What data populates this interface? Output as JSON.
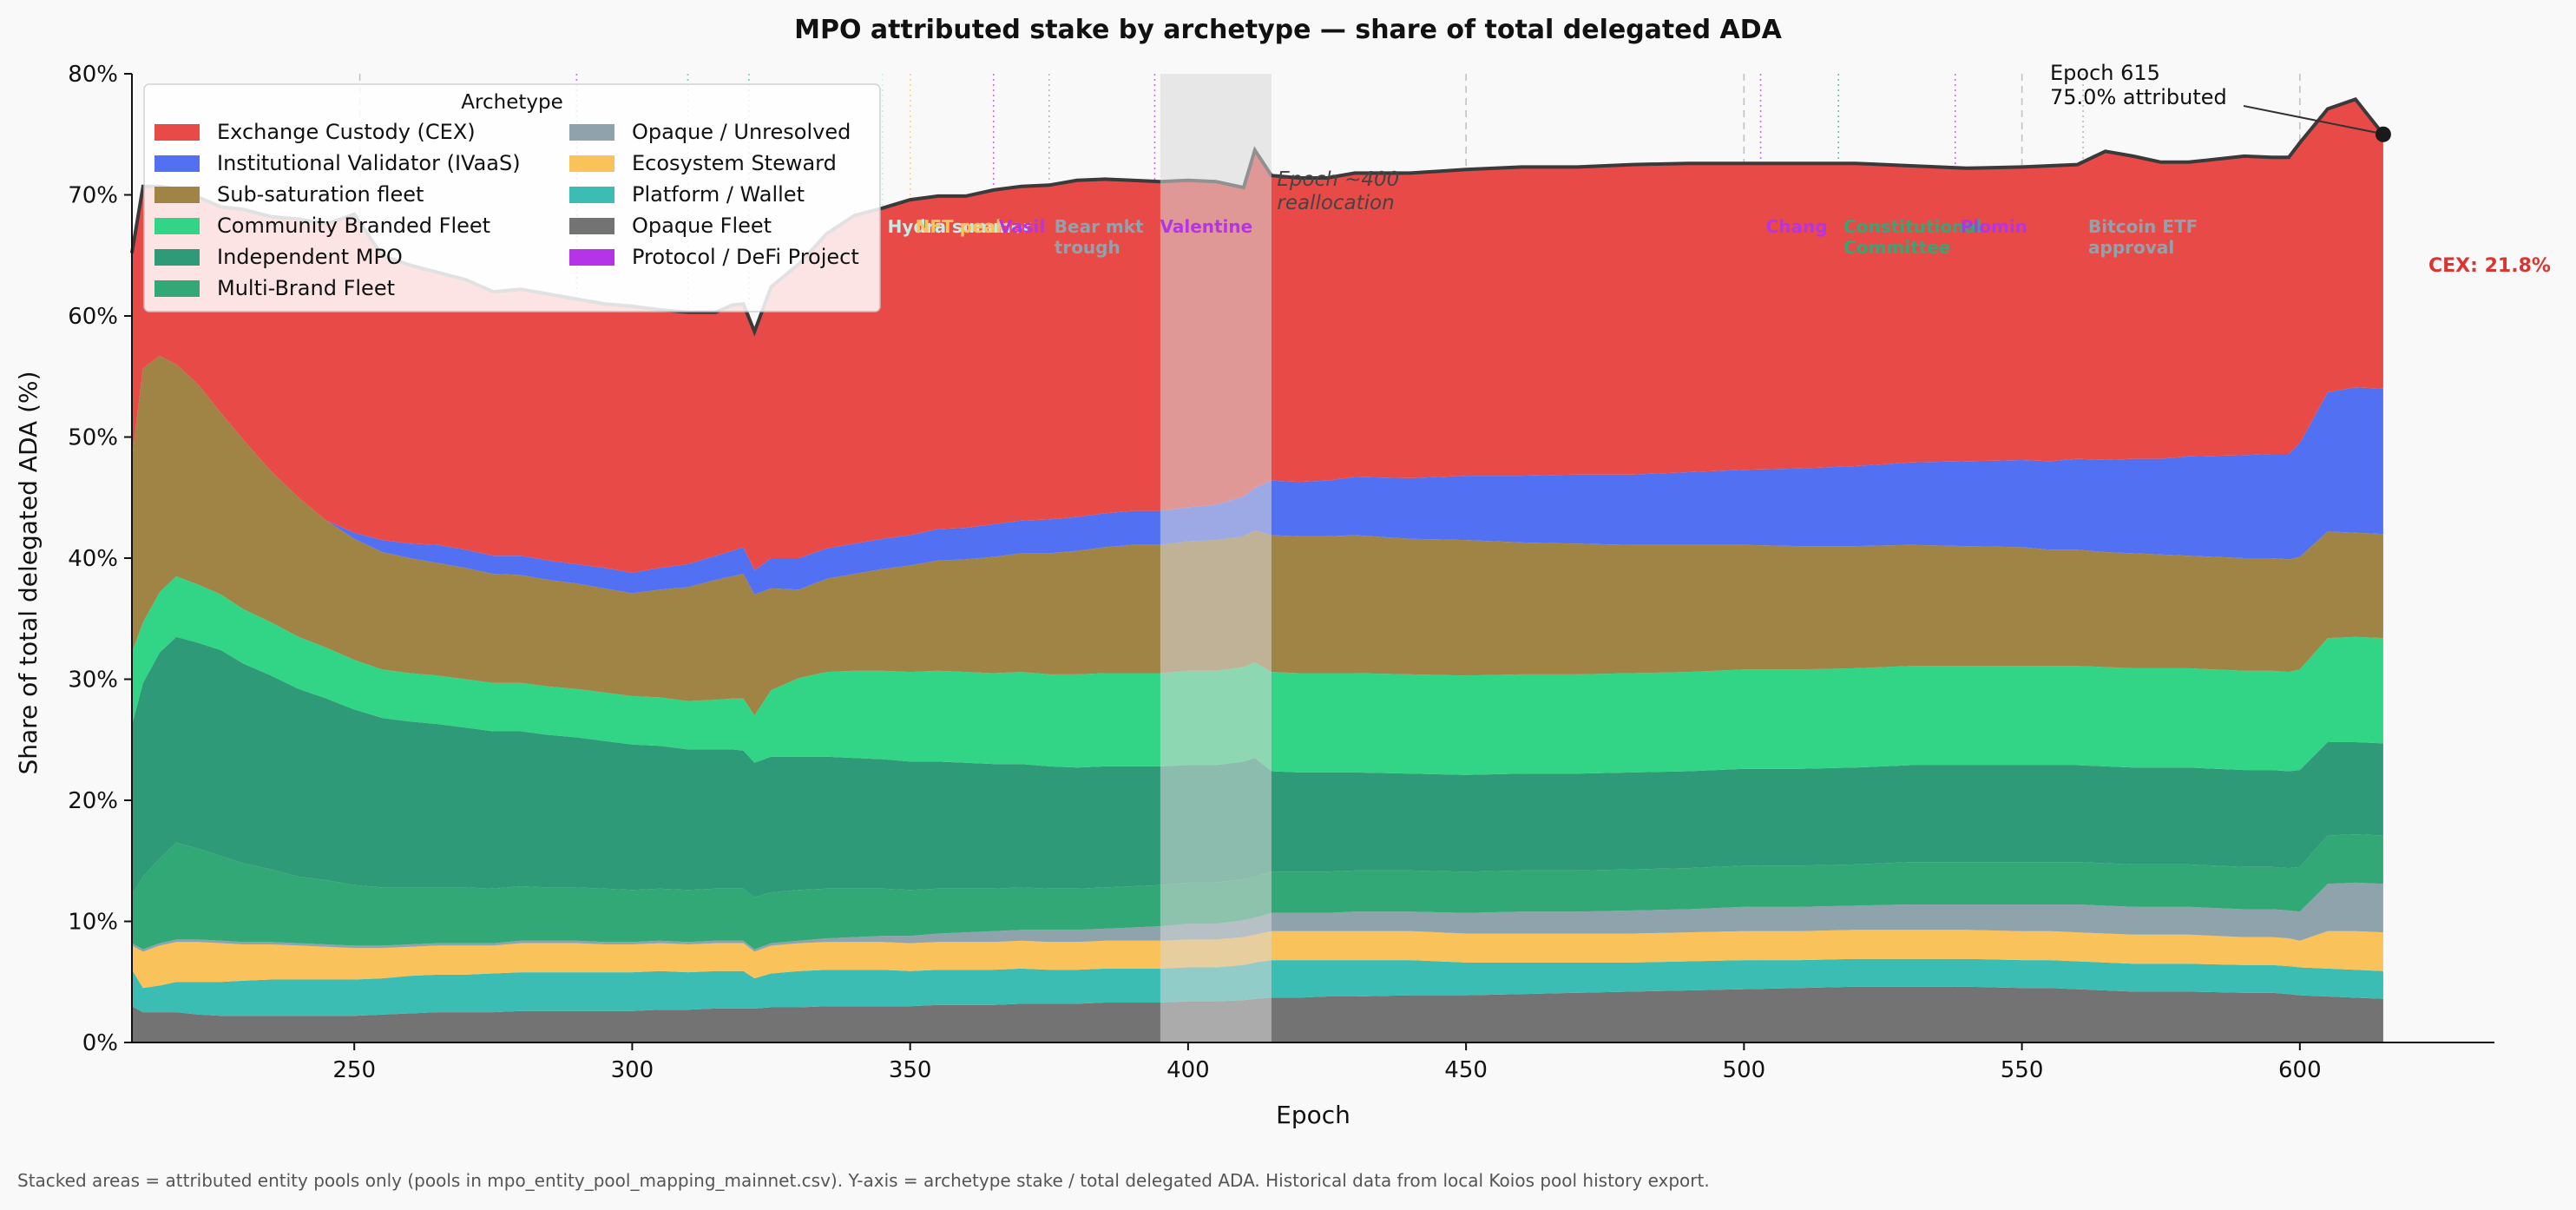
{
  "chart_data": {
    "type": "area",
    "stacked": true,
    "title": "MPO attributed stake by archetype — share of total delegated ADA",
    "xlabel": "Epoch",
    "ylabel": "Share of total delegated ADA (%)",
    "xlim": [
      210,
      635
    ],
    "ylim": [
      0,
      80
    ],
    "x_ticks": [
      "250",
      "300",
      "350",
      "400",
      "450",
      "500",
      "550",
      "600"
    ],
    "y_ticks": [
      "0%",
      "10%",
      "20%",
      "30%",
      "40%",
      "50%",
      "60%",
      "70%",
      "80%"
    ],
    "grid": false,
    "legend_title": "Archetype",
    "legend_position": "top-left",
    "x": [
      210,
      212,
      215,
      218,
      222,
      226,
      230,
      235,
      240,
      245,
      250,
      255,
      260,
      265,
      270,
      275,
      280,
      285,
      290,
      295,
      300,
      305,
      310,
      315,
      318,
      320,
      322,
      325,
      330,
      335,
      340,
      345,
      350,
      355,
      360,
      365,
      370,
      375,
      380,
      385,
      390,
      395,
      400,
      405,
      410,
      412,
      415,
      420,
      425,
      430,
      440,
      450,
      460,
      470,
      480,
      490,
      500,
      510,
      520,
      530,
      540,
      550,
      555,
      560,
      565,
      570,
      575,
      580,
      590,
      595,
      598,
      600,
      605,
      610,
      615
    ],
    "series": [
      {
        "name": "Opaque Fleet",
        "color": "#737373",
        "values": [
          3,
          2.5,
          2.5,
          2.5,
          2.3,
          2.2,
          2.2,
          2.2,
          2.2,
          2.2,
          2.2,
          2.3,
          2.4,
          2.5,
          2.5,
          2.5,
          2.6,
          2.6,
          2.6,
          2.6,
          2.6,
          2.7,
          2.7,
          2.8,
          2.8,
          2.8,
          2.8,
          2.9,
          2.9,
          3,
          3,
          3,
          3,
          3.1,
          3.1,
          3.1,
          3.2,
          3.2,
          3.2,
          3.3,
          3.3,
          3.3,
          3.4,
          3.4,
          3.5,
          3.6,
          3.7,
          3.7,
          3.8,
          3.8,
          3.9,
          3.9,
          4,
          4.1,
          4.2,
          4.3,
          4.4,
          4.5,
          4.6,
          4.6,
          4.6,
          4.5,
          4.5,
          4.4,
          4.3,
          4.2,
          4.2,
          4.2,
          4.1,
          4.1,
          4,
          3.9,
          3.8,
          3.7,
          3.6
        ]
      },
      {
        "name": "Platform / Wallet",
        "color": "#3cbdb3",
        "values": [
          3,
          2,
          2.2,
          2.5,
          2.7,
          2.8,
          2.9,
          3,
          3,
          3,
          3,
          3,
          3.1,
          3.1,
          3.1,
          3.2,
          3.2,
          3.2,
          3.2,
          3.2,
          3.2,
          3.2,
          3.1,
          3.1,
          3.1,
          3.1,
          2.5,
          2.8,
          3,
          3,
          3,
          3,
          2.9,
          2.9,
          2.9,
          2.9,
          2.9,
          2.8,
          2.8,
          2.8,
          2.8,
          2.8,
          2.8,
          2.8,
          2.9,
          3,
          3.1,
          3.1,
          3,
          3,
          2.9,
          2.7,
          2.6,
          2.5,
          2.4,
          2.4,
          2.4,
          2.3,
          2.3,
          2.3,
          2.3,
          2.3,
          2.3,
          2.3,
          2.3,
          2.3,
          2.3,
          2.3,
          2.3,
          2.3,
          2.3,
          2.3,
          2.3,
          2.3,
          2.3
        ]
      },
      {
        "name": "Ecosystem Steward",
        "color": "#f9c25a",
        "values": [
          2,
          3,
          3.3,
          3.3,
          3.3,
          3.2,
          3,
          2.9,
          2.8,
          2.7,
          2.6,
          2.5,
          2.4,
          2.4,
          2.4,
          2.3,
          2.4,
          2.4,
          2.4,
          2.3,
          2.3,
          2.3,
          2.3,
          2.3,
          2.3,
          2.3,
          2.2,
          2.3,
          2.3,
          2.3,
          2.3,
          2.3,
          2.3,
          2.3,
          2.3,
          2.3,
          2.3,
          2.3,
          2.3,
          2.3,
          2.3,
          2.3,
          2.3,
          2.3,
          2.3,
          2.3,
          2.4,
          2.4,
          2.4,
          2.4,
          2.4,
          2.4,
          2.4,
          2.4,
          2.4,
          2.4,
          2.4,
          2.4,
          2.4,
          2.4,
          2.4,
          2.4,
          2.4,
          2.4,
          2.4,
          2.4,
          2.4,
          2.4,
          2.3,
          2.3,
          2.3,
          2.2,
          3.1,
          3.2,
          3.2
        ]
      },
      {
        "name": "Opaque / Unresolved",
        "color": "#8fa3ad",
        "values": [
          0.2,
          0.2,
          0.2,
          0.2,
          0.2,
          0.2,
          0.2,
          0.2,
          0.2,
          0.2,
          0.2,
          0.2,
          0.2,
          0.2,
          0.2,
          0.2,
          0.2,
          0.2,
          0.2,
          0.2,
          0.2,
          0.2,
          0.2,
          0.2,
          0.2,
          0.2,
          0.2,
          0.2,
          0.2,
          0.3,
          0.4,
          0.5,
          0.6,
          0.7,
          0.8,
          0.9,
          0.9,
          1,
          1,
          1,
          1.1,
          1.2,
          1.3,
          1.3,
          1.4,
          1.4,
          1.5,
          1.5,
          1.5,
          1.6,
          1.6,
          1.7,
          1.8,
          1.8,
          1.9,
          1.9,
          2,
          2,
          2,
          2.1,
          2.1,
          2.2,
          2.2,
          2.3,
          2.3,
          2.3,
          2.3,
          2.3,
          2.3,
          2.3,
          2.3,
          2.4,
          3.9,
          4.0,
          4.0
        ]
      },
      {
        "name": "Multi-Brand Fleet",
        "color": "#31a876",
        "values": [
          4,
          6,
          7,
          8,
          7.5,
          7,
          6.5,
          6,
          5.5,
          5.3,
          5,
          4.8,
          4.7,
          4.6,
          4.6,
          4.5,
          4.5,
          4.4,
          4.4,
          4.4,
          4.3,
          4.3,
          4.3,
          4.3,
          4.3,
          4.3,
          4.3,
          4.2,
          4.2,
          4.1,
          4,
          3.9,
          3.8,
          3.7,
          3.6,
          3.5,
          3.5,
          3.4,
          3.4,
          3.4,
          3.4,
          3.4,
          3.4,
          3.4,
          3.4,
          3.4,
          3.4,
          3.4,
          3.4,
          3.4,
          3.4,
          3.4,
          3.4,
          3.4,
          3.4,
          3.4,
          3.4,
          3.4,
          3.4,
          3.5,
          3.5,
          3.5,
          3.5,
          3.5,
          3.5,
          3.5,
          3.5,
          3.5,
          3.5,
          3.5,
          3.5,
          3.7,
          4.0,
          4.0,
          4.0
        ]
      },
      {
        "name": "Independent MPO",
        "color": "#2e9a78",
        "values": [
          14,
          16,
          17,
          17,
          17,
          17,
          16.5,
          16,
          15.5,
          15,
          14.5,
          14,
          13.7,
          13.5,
          13.2,
          13,
          12.8,
          12.6,
          12.4,
          12.2,
          12,
          11.8,
          11.6,
          11.5,
          11.5,
          11.4,
          11.1,
          11.2,
          11,
          10.9,
          10.8,
          10.7,
          10.6,
          10.5,
          10.4,
          10.3,
          10.2,
          10.1,
          10,
          10,
          9.9,
          9.8,
          9.7,
          9.7,
          9.7,
          9.8,
          8.3,
          8.2,
          8.2,
          8.1,
          8,
          8,
          8,
          8,
          8,
          8,
          8,
          8,
          8,
          8,
          8,
          8,
          8,
          8,
          8,
          8,
          8,
          8,
          8,
          8,
          8,
          8,
          7.7,
          7.6,
          7.6
        ]
      },
      {
        "name": "Community Branded Fleet",
        "color": "#32d486",
        "values": [
          6,
          5,
          5,
          5,
          4.8,
          4.6,
          4.5,
          4.4,
          4.3,
          4.2,
          4.1,
          4,
          4,
          4,
          4,
          4,
          4,
          4,
          4,
          4,
          4,
          4,
          4,
          4.1,
          4.2,
          4.3,
          3.9,
          5.5,
          6.5,
          7,
          7.2,
          7.3,
          7.4,
          7.5,
          7.5,
          7.5,
          7.6,
          7.6,
          7.7,
          7.7,
          7.7,
          7.7,
          7.8,
          7.8,
          7.8,
          7.9,
          8.2,
          8.2,
          8.2,
          8.2,
          8.2,
          8.2,
          8.2,
          8.2,
          8.2,
          8.2,
          8.2,
          8.2,
          8.2,
          8.2,
          8.2,
          8.2,
          8.2,
          8.2,
          8.2,
          8.2,
          8.2,
          8.2,
          8.2,
          8.2,
          8.2,
          8.3,
          8.6,
          8.7,
          8.7
        ]
      },
      {
        "name": "Sub-saturation fleet",
        "color": "#a08446",
        "values": [
          16,
          21,
          19.5,
          17.5,
          16.5,
          15,
          14,
          12.5,
          11.5,
          10.5,
          10,
          9.7,
          9.5,
          9.3,
          9.2,
          9,
          8.9,
          8.8,
          8.7,
          8.6,
          8.5,
          8.9,
          9.4,
          9.9,
          10.1,
          10.3,
          10,
          8.4,
          7.3,
          7.7,
          8.0,
          8.4,
          8.8,
          9.1,
          9.3,
          9.6,
          9.8,
          10,
          10.2,
          10.4,
          10.6,
          10.6,
          10.7,
          10.8,
          10.8,
          10.9,
          11.3,
          11.3,
          11.3,
          11.4,
          11.2,
          11.2,
          10.9,
          10.8,
          10.6,
          10.5,
          10.3,
          10.2,
          10.1,
          10,
          9.9,
          9.8,
          9.6,
          9.6,
          9.5,
          9.5,
          9.4,
          9.3,
          9.3,
          9.3,
          9.3,
          9.3,
          8.8,
          8.6,
          8.6
        ]
      },
      {
        "name": "Institutional Validator (IVaaS)",
        "color": "#5270f2",
        "values": [
          0,
          0,
          0,
          0,
          0,
          0,
          0,
          0,
          0,
          0,
          0.5,
          1,
          1.2,
          1.5,
          1.5,
          1.5,
          1.6,
          1.6,
          1.6,
          1.7,
          1.7,
          1.8,
          1.9,
          2,
          2.1,
          2.2,
          2,
          2.5,
          2.6,
          2.5,
          2.5,
          2.5,
          2.5,
          2.6,
          2.6,
          2.7,
          2.7,
          2.8,
          2.8,
          2.8,
          2.8,
          2.8,
          2.8,
          2.9,
          3.3,
          3.5,
          4.5,
          4.5,
          4.6,
          4.8,
          5,
          5.3,
          5.5,
          5.7,
          5.8,
          6,
          6.2,
          6.4,
          6.6,
          6.8,
          7,
          7.2,
          7.3,
          7.5,
          7.6,
          7.8,
          7.9,
          8.2,
          8.5,
          8.6,
          8.7,
          9.4,
          11.5,
          12.0,
          12.0
        ]
      },
      {
        "name": "Exchange Custody (CEX)",
        "color": "#e84a48",
        "values": [
          17,
          15,
          14,
          14.5,
          15.5,
          17,
          19,
          21,
          23,
          24.5,
          25.5,
          23.5,
          23,
          22.5,
          22.5,
          22.5,
          22,
          22,
          22,
          22,
          22,
          21.5,
          21,
          20.5,
          20.5,
          20,
          19.7,
          21,
          22.5,
          24,
          25,
          25.3,
          25.7,
          25.5,
          25.5,
          25.6,
          25.6,
          25.6,
          25.6,
          25.6,
          25.3,
          25,
          24.7,
          24.3,
          23.4,
          22.5,
          21.4,
          21.3,
          21.2,
          21.1,
          21.1,
          21.2,
          21.3,
          21.4,
          21.5,
          21.5,
          21.3,
          21.2,
          21,
          20.5,
          20.2,
          20.2,
          20.4,
          20.6,
          21.5,
          21.1,
          20.8,
          20.6,
          20.6,
          20.4,
          20.5,
          21,
          22.6,
          23.6,
          21.8
        ]
      }
    ],
    "total_attributed": [
      65.2,
      70.7,
      70.7,
      70.5,
      69.8,
      69.0,
      68.8,
      68.2,
      68.0,
      67.6,
      68.4,
      65.0,
      64.2,
      63.6,
      63.0,
      62.0,
      62.2,
      61.8,
      61.4,
      61.0,
      60.8,
      60.5,
      60.3,
      60.3,
      60.9,
      61.0,
      58.7,
      62.4,
      64.3,
      66.8,
      68.3,
      68.9,
      69.6,
      69.9,
      69.9,
      70.4,
      70.7,
      70.8,
      71.2,
      71.3,
      71.2,
      71.1,
      71.2,
      71.1,
      70.6,
      73.7,
      71.6,
      71.4,
      71.4,
      71.8,
      71.8,
      72.1,
      72.3,
      72.3,
      72.5,
      72.6,
      72.6,
      72.6,
      72.6,
      72.4,
      72.2,
      72.3,
      72.4,
      72.5,
      73.6,
      73.2,
      72.7,
      72.7,
      73.2,
      73.1,
      73.1,
      74.3,
      77.1,
      77.9,
      75.0
    ],
    "highlight_region": {
      "x_start": 395,
      "x_end": 415
    },
    "events": [
      {
        "epoch": 251,
        "label": "",
        "color": "#aaaaaa"
      },
      {
        "epoch": 290,
        "label": "",
        "color": "#b634e8"
      },
      {
        "epoch": 310,
        "label": "",
        "color": "#3cbdb3"
      },
      {
        "epoch": 321,
        "label": "",
        "color": "#3cbdb3"
      },
      {
        "epoch": 345,
        "label": "Hydra summer",
        "color": "#bdeee9"
      },
      {
        "epoch": 350,
        "label": "NFT peak",
        "color": "#f9c25a"
      },
      {
        "epoch": 365,
        "label": "Vasil",
        "color": "#b634e8"
      },
      {
        "epoch": 375,
        "label": "Bear mkt trough",
        "color": "#8fa3ad"
      },
      {
        "epoch": 394,
        "label": "Valentine",
        "color": "#b634e8"
      },
      {
        "epoch": 450,
        "label": "",
        "color": "#aaaaaa"
      },
      {
        "epoch": 500,
        "label": "",
        "color": "#aaaaaa"
      },
      {
        "epoch": 503,
        "label": "Chang",
        "color": "#b634e8"
      },
      {
        "epoch": 517,
        "label": "Constitutional Committee",
        "color": "#31a876"
      },
      {
        "epoch": 538,
        "label": "Plomin",
        "color": "#b634e8"
      },
      {
        "epoch": 550,
        "label": "",
        "color": "#aaaaaa"
      },
      {
        "epoch": 561,
        "label": "Bitcoin ETF approval",
        "color": "#8fa3ad"
      },
      {
        "epoch": 600,
        "label": "",
        "color": "#aaaaaa"
      }
    ],
    "annotations": {
      "reallocation": "Epoch ~400 reallocation",
      "last_point": "Epoch 615 75.0% attributed",
      "cex_label": "CEX: 21.8%"
    },
    "legend": [
      {
        "label": "Exchange Custody (CEX)",
        "color": "#e84a48"
      },
      {
        "label": "Institutional Validator (IVaaS)",
        "color": "#5270f2"
      },
      {
        "label": "Sub-saturation fleet",
        "color": "#a08446"
      },
      {
        "label": "Community Branded Fleet",
        "color": "#32d486"
      },
      {
        "label": "Independent MPO",
        "color": "#2e9a78"
      },
      {
        "label": "Multi-Brand Fleet",
        "color": "#31a876"
      },
      {
        "label": "Opaque / Unresolved",
        "color": "#8fa3ad"
      },
      {
        "label": "Ecosystem Steward",
        "color": "#f9c25a"
      },
      {
        "label": "Platform / Wallet",
        "color": "#3cbdb3"
      },
      {
        "label": "Opaque Fleet",
        "color": "#737373"
      },
      {
        "label": "Protocol / DeFi Project",
        "color": "#b634e8"
      }
    ]
  },
  "footnote": "Stacked areas = attributed entity pools only (pools in mpo_entity_pool_mapping_mainnet.csv). Y-axis = archetype stake / total delegated ADA. Historical data from local Koios pool history export."
}
